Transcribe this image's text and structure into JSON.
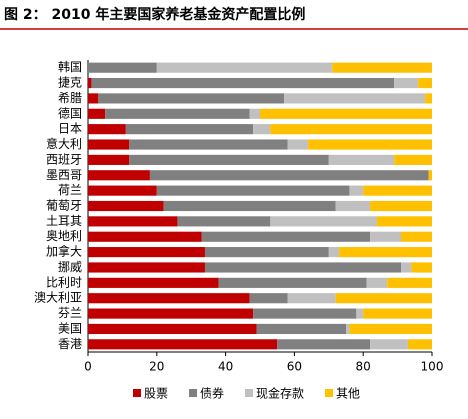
{
  "chart_data": {
    "type": "stacked-bar-horizontal",
    "title": "图 2：   2010 年主要国家养老基金资产配置比例",
    "categories": [
      "韩国",
      "捷克",
      "希腊",
      "德国",
      "日本",
      "意大利",
      "西班牙",
      "墨西哥",
      "荷兰",
      "葡萄牙",
      "土耳其",
      "奥地利",
      "加拿大",
      "挪威",
      "比利时",
      "澳大利亚",
      "芬兰",
      "美国",
      "香港"
    ],
    "series": [
      {
        "name": "股票",
        "color": "#c00000",
        "values": [
          0,
          1,
          3,
          5,
          11,
          12,
          12,
          18,
          20,
          22,
          26,
          33,
          34,
          34,
          38,
          47,
          48,
          49,
          55
        ]
      },
      {
        "name": "债券",
        "color": "#808080",
        "values": [
          20,
          88,
          54,
          42,
          37,
          46,
          58,
          81,
          56,
          50,
          27,
          49,
          36,
          57,
          43,
          11,
          30,
          26,
          27
        ]
      },
      {
        "name": "现金存款",
        "color": "#c0c0c0",
        "values": [
          51,
          7,
          41,
          3,
          5,
          6,
          19,
          0,
          4,
          10,
          31,
          9,
          3,
          3,
          6,
          14,
          2,
          1,
          11
        ]
      },
      {
        "name": "其他",
        "color": "#ffc000",
        "values": [
          29,
          4,
          2,
          50,
          47,
          36,
          11,
          1,
          20,
          18,
          16,
          9,
          27,
          6,
          13,
          28,
          20,
          24,
          7
        ]
      }
    ],
    "xlim": [
      0,
      100
    ],
    "xticks": [
      0,
      20,
      40,
      60,
      80,
      100
    ],
    "legend": "bottom"
  }
}
